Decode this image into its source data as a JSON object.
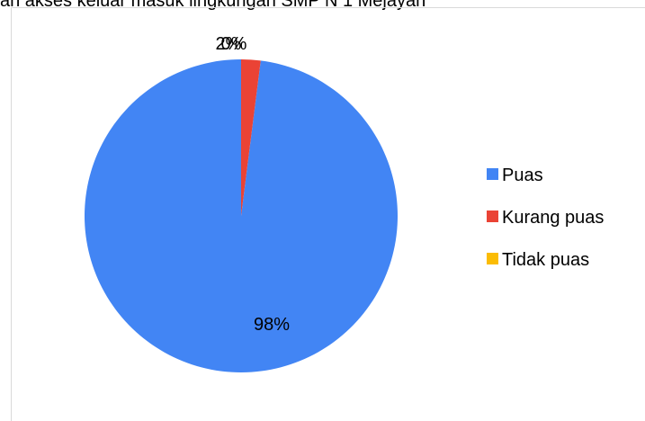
{
  "chart_data": {
    "type": "pie",
    "title": "an akses keluar masuk lingkungan SMP N 1 Mejayan",
    "categories": [
      "Puas",
      "Kurang puas",
      "Tidak puas"
    ],
    "values": [
      98,
      2,
      0
    ],
    "data_labels": [
      "98%",
      "2%",
      "0%"
    ],
    "colors": [
      "#4285f4",
      "#ea4335",
      "#fbbc04"
    ],
    "legend": {
      "position": "right",
      "entries": [
        "Puas",
        "Kurang puas",
        "Tidak puas"
      ]
    }
  }
}
